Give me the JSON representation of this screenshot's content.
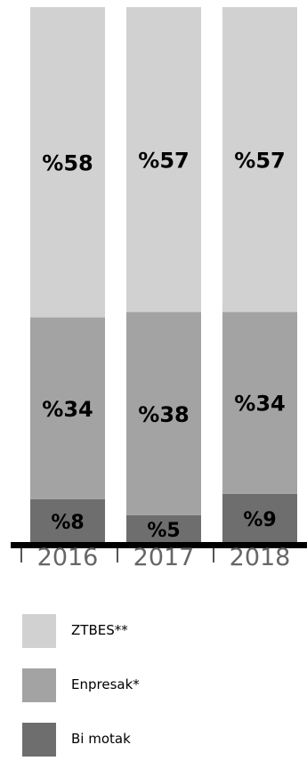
{
  "chart_data": {
    "type": "bar",
    "stacked": true,
    "categories": [
      "2016",
      "2017",
      "2018"
    ],
    "series": [
      {
        "name": "Bi motak",
        "values": [
          8,
          5,
          9
        ],
        "labels": [
          "%8",
          "%5",
          "%9"
        ],
        "color": "#6e6e6e"
      },
      {
        "name": "Enpresak*",
        "values": [
          34,
          38,
          34
        ],
        "labels": [
          "%34",
          "%38",
          "%34"
        ],
        "color": "#a3a3a3"
      },
      {
        "name": "ZTBES**",
        "values": [
          58,
          57,
          57
        ],
        "labels": [
          "%58",
          "%57",
          "%57"
        ],
        "color": "#d1d1d1"
      }
    ],
    "legend": {
      "placement": "bottom",
      "items": [
        {
          "label": "ZTBES**",
          "color": "#d1d1d1"
        },
        {
          "label": "Enpresak*",
          "color": "#a3a3a3"
        },
        {
          "label": "Bi motak",
          "color": "#6e6e6e"
        }
      ]
    },
    "grid": false
  }
}
